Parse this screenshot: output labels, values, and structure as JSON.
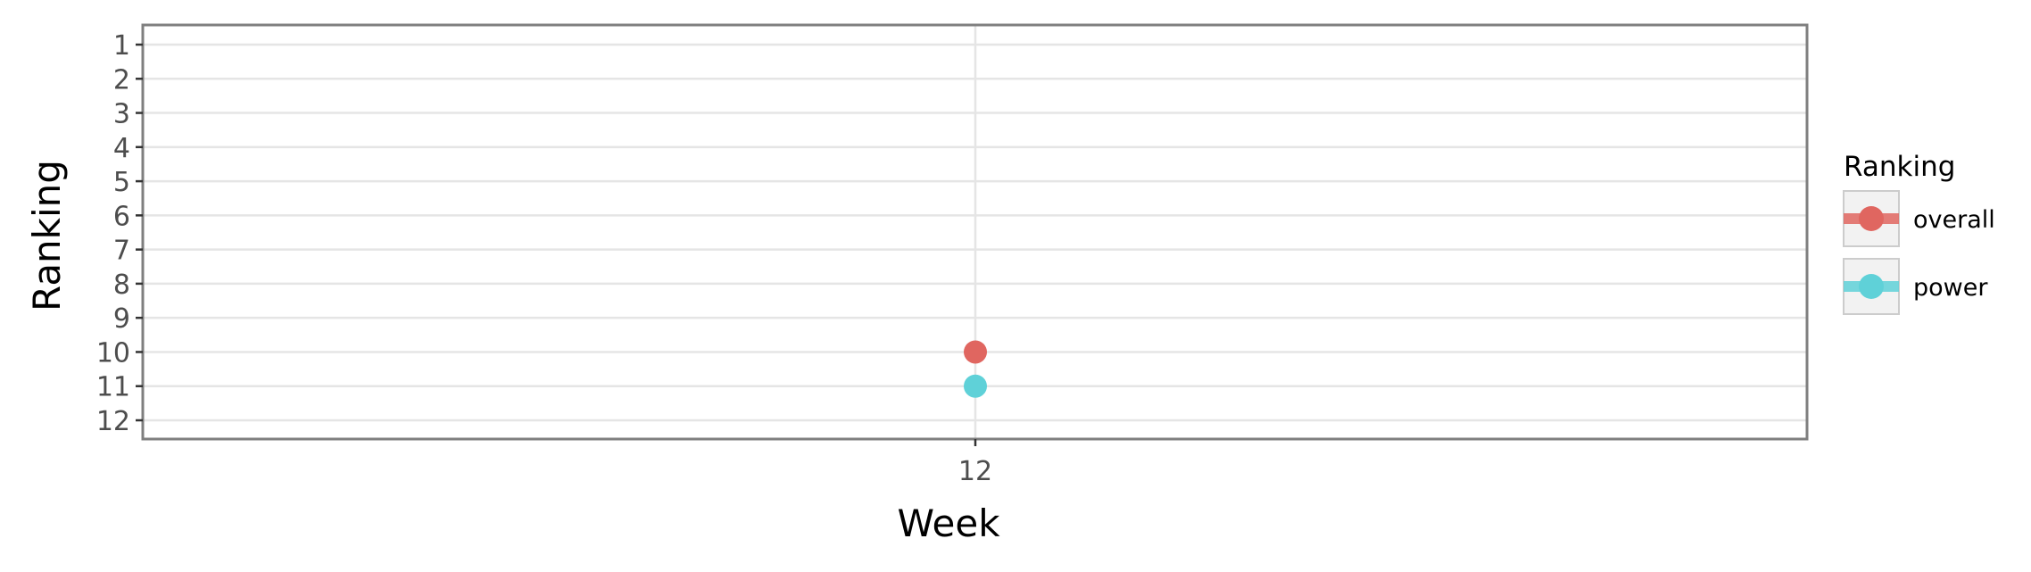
{
  "chart_data": {
    "type": "line",
    "title": "",
    "xlabel": "Week",
    "ylabel": "Ranking",
    "x_ticks": [
      "12"
    ],
    "y_ticks": [
      "1",
      "2",
      "3",
      "4",
      "5",
      "6",
      "7",
      "8",
      "9",
      "10",
      "11",
      "12"
    ],
    "ylim": [
      1,
      12
    ],
    "y_reversed": true,
    "grid": true,
    "legend": {
      "title": "Ranking",
      "placement": "right"
    },
    "series": [
      {
        "name": "overall",
        "color": "#e06660",
        "x": [
          "12"
        ],
        "values": [
          10
        ]
      },
      {
        "name": "power",
        "color": "#5fd1d8",
        "x": [
          "12"
        ],
        "values": [
          11
        ]
      }
    ]
  }
}
